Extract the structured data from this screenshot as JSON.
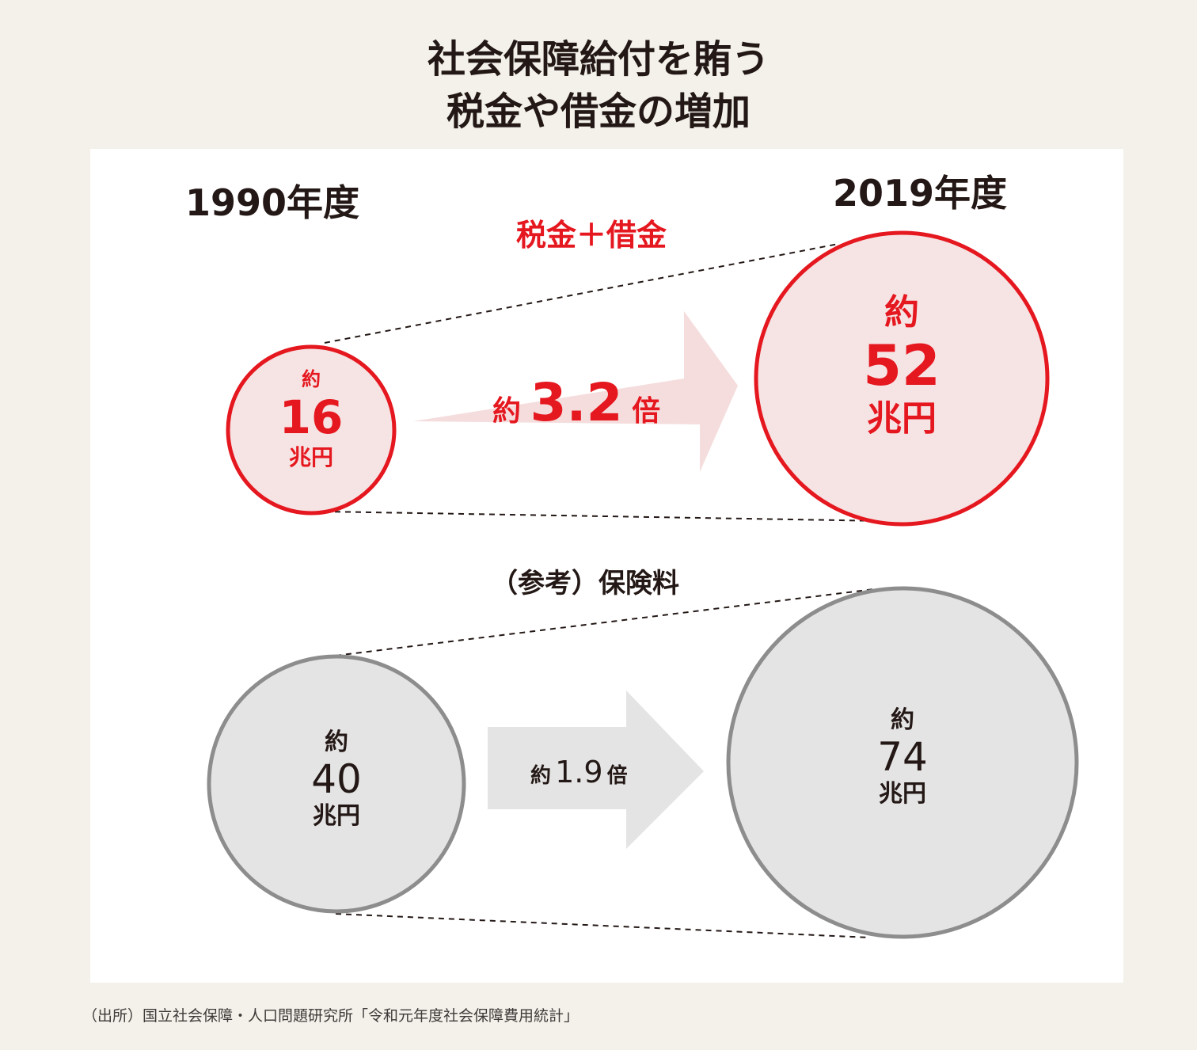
{
  "title": {
    "line1": "社会保障給付を賄う",
    "line2": "税金や借金の増加"
  },
  "years": {
    "left": "1990年度",
    "right": "2019年度"
  },
  "tax_debt": {
    "heading": "税金＋借金",
    "before": {
      "prefix": "約",
      "value": "16",
      "unit": "兆円"
    },
    "after": {
      "prefix": "約",
      "value": "52",
      "unit": "兆円"
    },
    "ratio": {
      "prefix": "約",
      "value": "3.2",
      "suffix": "倍"
    }
  },
  "insurance": {
    "heading": "（参考）保険料",
    "before": {
      "prefix": "約",
      "value": "40",
      "unit": "兆円"
    },
    "after": {
      "prefix": "約",
      "value": "74",
      "unit": "兆円"
    },
    "ratio": {
      "prefix": "約",
      "value": "1.9",
      "suffix": "倍"
    }
  },
  "source": "（出所）国立社会保障・人口問題研究所「令和元年度社会保障費用統計」",
  "colors": {
    "red": "#e5171f",
    "red_fill": "#f6e3e3",
    "gray_stroke": "#8d8d8d",
    "gray_fill": "#e4e4e4",
    "arrow_red": "#f5dddd",
    "arrow_gray": "#e4e4e4"
  }
}
